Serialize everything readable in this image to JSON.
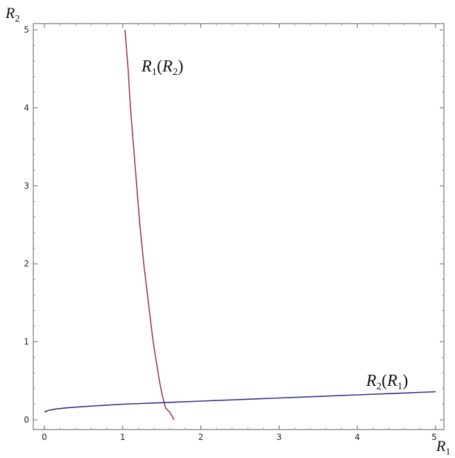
{
  "chart_data": {
    "type": "line",
    "title": "",
    "xlabel": {
      "main": "R",
      "sub": "1"
    },
    "ylabel": {
      "main": "R",
      "sub": "2"
    },
    "xlim": [
      0,
      5
    ],
    "ylim": [
      0,
      5
    ],
    "x_ticks": [
      "0",
      "1",
      "2",
      "3",
      "4",
      "5"
    ],
    "y_ticks": [
      "0",
      "1",
      "2",
      "3",
      "4",
      "5"
    ],
    "grid": false,
    "frame": true,
    "series": [
      {
        "name": "R1(R2)",
        "label": {
          "main": "R",
          "sub": "1",
          "arg_main": "R",
          "arg_sub": "2"
        },
        "color": "#993366",
        "points": [
          [
            1.03,
            5.0
          ],
          [
            1.07,
            4.5
          ],
          [
            1.1,
            4.0
          ],
          [
            1.14,
            3.5
          ],
          [
            1.18,
            3.0
          ],
          [
            1.22,
            2.5
          ],
          [
            1.27,
            2.0
          ],
          [
            1.33,
            1.5
          ],
          [
            1.39,
            1.0
          ],
          [
            1.43,
            0.75
          ],
          [
            1.47,
            0.5
          ],
          [
            1.51,
            0.3
          ],
          [
            1.55,
            0.15
          ],
          [
            1.6,
            0.1
          ],
          [
            1.63,
            0.05
          ],
          [
            1.66,
            0.0
          ]
        ]
      },
      {
        "name": "R2(R1)",
        "label": {
          "main": "R",
          "sub": "2",
          "arg_main": "R",
          "arg_sub": "1"
        },
        "color": "#2e2e80",
        "points": [
          [
            0.0,
            0.1
          ],
          [
            0.05,
            0.12
          ],
          [
            0.15,
            0.14
          ],
          [
            0.3,
            0.155
          ],
          [
            0.5,
            0.17
          ],
          [
            0.75,
            0.185
          ],
          [
            1.0,
            0.2
          ],
          [
            1.5,
            0.22
          ],
          [
            2.0,
            0.24
          ],
          [
            2.5,
            0.26
          ],
          [
            3.0,
            0.28
          ],
          [
            3.5,
            0.3
          ],
          [
            4.0,
            0.32
          ],
          [
            4.5,
            0.34
          ],
          [
            5.0,
            0.36
          ]
        ]
      }
    ]
  }
}
